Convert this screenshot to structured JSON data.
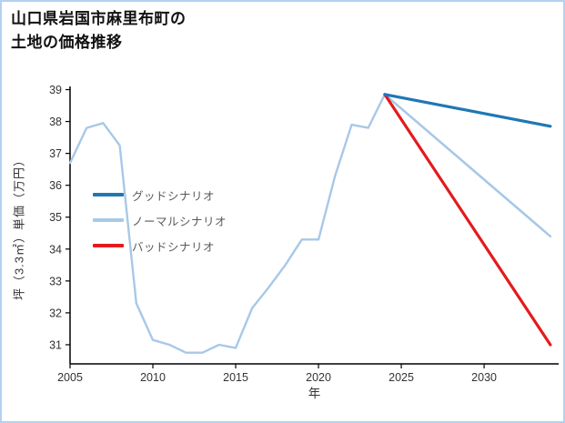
{
  "title": {
    "line1": "山口県岩国市麻里布町の",
    "line2": "土地の価格推移"
  },
  "chart_data": {
    "type": "line",
    "title": "山口県岩国市麻里布町の土地の価格推移",
    "xlabel": "年",
    "ylabel": "坪（3.3㎡）単価（万円）",
    "xlim": [
      2005,
      2034.5
    ],
    "ylim": [
      30.4,
      39.1
    ],
    "x_ticks": [
      2005,
      2010,
      2015,
      2020,
      2025,
      2030
    ],
    "y_ticks": [
      31,
      32,
      33,
      34,
      35,
      36,
      37,
      38,
      39
    ],
    "grid": false,
    "legend_position": "left-middle",
    "colors": {
      "good": "#1f77b4",
      "normal": "#a8c8e8",
      "bad": "#e41a1c",
      "axis": "#000000",
      "tick_text": "#333333",
      "legend_text": "#595959",
      "page_border": "#b3d1f0"
    },
    "legend": [
      {
        "label": "グッドシナリオ",
        "color": "#1f77b4"
      },
      {
        "label": "ノーマルシナリオ",
        "color": "#a8c8e8"
      },
      {
        "label": "バッドシナリオ",
        "color": "#e41a1c"
      }
    ],
    "series": [
      {
        "id": "history",
        "color": "#a8c8e8",
        "width": 2.4,
        "x": [
          2005,
          2006,
          2007,
          2008,
          2009,
          2010,
          2011,
          2012,
          2013,
          2014,
          2015,
          2016,
          2017,
          2018,
          2019,
          2020,
          2021,
          2022,
          2023,
          2024
        ],
        "y": [
          36.7,
          37.8,
          37.95,
          37.25,
          32.3,
          31.15,
          31.0,
          30.75,
          30.75,
          31.0,
          30.9,
          32.15,
          32.8,
          33.5,
          34.3,
          34.3,
          36.3,
          37.9,
          37.8,
          38.85
        ]
      },
      {
        "id": "normal-scenario",
        "color": "#a8c8e8",
        "width": 2.6,
        "x": [
          2024,
          2034
        ],
        "y": [
          38.85,
          34.4
        ]
      },
      {
        "id": "bad-scenario",
        "color": "#e41a1c",
        "width": 3.2,
        "x": [
          2024,
          2034
        ],
        "y": [
          38.85,
          31.0
        ]
      },
      {
        "id": "good-scenario",
        "color": "#1f77b4",
        "width": 3.2,
        "x": [
          2024,
          2034
        ],
        "y": [
          38.85,
          37.85
        ]
      }
    ]
  }
}
